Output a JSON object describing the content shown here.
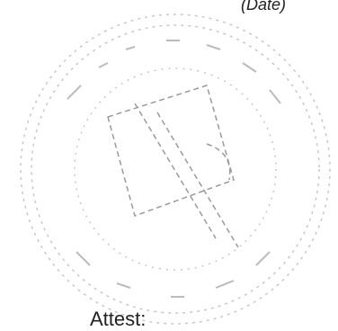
{
  "document": {
    "date_label": "(Date)",
    "attest_label": "Attest:"
  }
}
